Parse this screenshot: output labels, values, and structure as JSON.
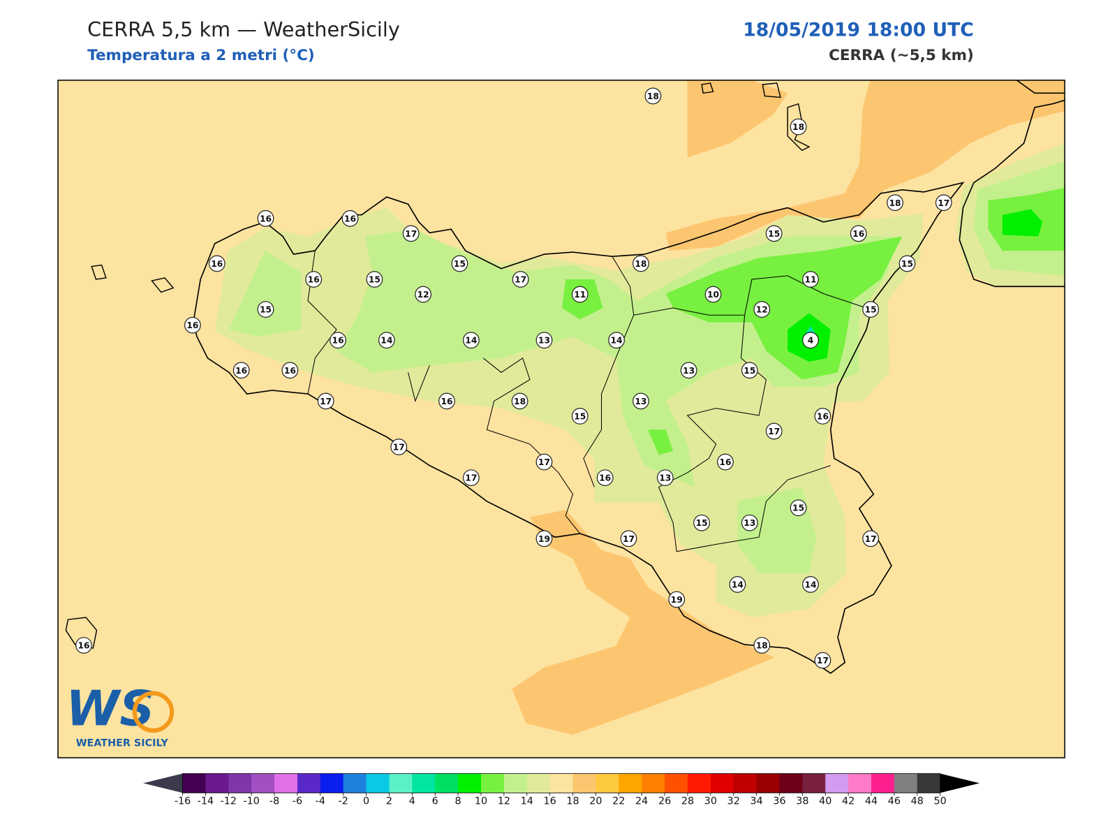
{
  "header": {
    "title": "CERRA 5,5 km — WeatherSicily",
    "subtitle": "Temperatura a 2 metri (°C)",
    "datetime": "18/05/2019 18:00 UTC",
    "model": "CERRA (~5,5 km)"
  },
  "stations": [
    18,
    18,
    16,
    16,
    17,
    18,
    17,
    16,
    15,
    16,
    16,
    15,
    15,
    17,
    18,
    15,
    15,
    12,
    11,
    10,
    11,
    12,
    15,
    16,
    16,
    14,
    14,
    13,
    14,
    4,
    16,
    16,
    13,
    15,
    17,
    16,
    18,
    13,
    15,
    16,
    17,
    17,
    17,
    16,
    17,
    16,
    13,
    15,
    15,
    13,
    19,
    17,
    17,
    14,
    14,
    19,
    18,
    17,
    16
  ],
  "colorbar": {
    "ticks": [
      -16,
      -14,
      -12,
      -10,
      -8,
      -6,
      -4,
      -2,
      0,
      2,
      4,
      6,
      8,
      10,
      12,
      14,
      16,
      18,
      20,
      22,
      24,
      26,
      28,
      30,
      32,
      34,
      36,
      38,
      40,
      42,
      44,
      46,
      48,
      50
    ],
    "colors": [
      "#440053",
      "#6a1a8c",
      "#7f36a8",
      "#a050c0",
      "#e070e8",
      "#5a28c8",
      "#0a1ef0",
      "#1e82dc",
      "#0ac8e6",
      "#5af0c8",
      "#00e6a0",
      "#00e060",
      "#00f000",
      "#78f040",
      "#c3f08c",
      "#e1ea9a",
      "#fde3a0",
      "#fcc670",
      "#fdca40",
      "#ffa500",
      "#ff8000",
      "#ff5000",
      "#ff1a00",
      "#e00000",
      "#c00000",
      "#9a0000",
      "#6e0018",
      "#7a2040",
      "#d49af0",
      "#ff7ac8",
      "#ff2090",
      "#808080",
      "#383838"
    ],
    "extend_colors": [
      "#3a3a4a",
      "#000000"
    ]
  },
  "logo": {
    "mark": "WS",
    "caption": "WEATHER SICILY"
  }
}
